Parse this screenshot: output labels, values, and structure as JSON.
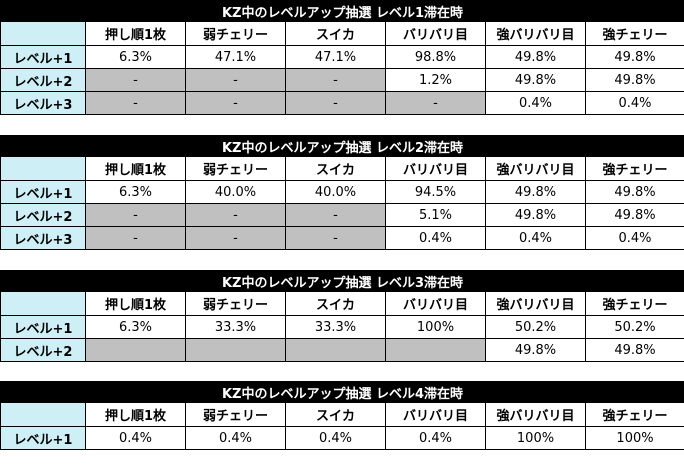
{
  "columns": [
    "押し順1枚",
    "弱チェリー",
    "スイカ",
    "バリバリ目",
    "強バリバリ目",
    "強チェリー"
  ],
  "tables": [
    {
      "title": "KZ中のレベルアップ抽選 レベル1滞在時",
      "rows": [
        {
          "label": "レベル+1",
          "cells": [
            {
              "v": "6.3%",
              "g": false
            },
            {
              "v": "47.1%",
              "g": false
            },
            {
              "v": "47.1%",
              "g": false
            },
            {
              "v": "98.8%",
              "g": false
            },
            {
              "v": "49.8%",
              "g": false
            },
            {
              "v": "49.8%",
              "g": false
            }
          ]
        },
        {
          "label": "レベル+2",
          "cells": [
            {
              "v": "-",
              "g": true
            },
            {
              "v": "-",
              "g": true
            },
            {
              "v": "-",
              "g": true
            },
            {
              "v": "1.2%",
              "g": false
            },
            {
              "v": "49.8%",
              "g": false
            },
            {
              "v": "49.8%",
              "g": false
            }
          ]
        },
        {
          "label": "レベル+3",
          "cells": [
            {
              "v": "-",
              "g": true
            },
            {
              "v": "-",
              "g": true
            },
            {
              "v": "-",
              "g": true
            },
            {
              "v": "-",
              "g": true
            },
            {
              "v": "0.4%",
              "g": false
            },
            {
              "v": "0.4%",
              "g": false
            }
          ]
        }
      ]
    },
    {
      "title": "KZ中のレベルアップ抽選 レベル2滞在時",
      "rows": [
        {
          "label": "レベル+1",
          "cells": [
            {
              "v": "6.3%",
              "g": false
            },
            {
              "v": "40.0%",
              "g": false
            },
            {
              "v": "40.0%",
              "g": false
            },
            {
              "v": "94.5%",
              "g": false
            },
            {
              "v": "49.8%",
              "g": false
            },
            {
              "v": "49.8%",
              "g": false
            }
          ]
        },
        {
          "label": "レベル+2",
          "cells": [
            {
              "v": "-",
              "g": true
            },
            {
              "v": "-",
              "g": true
            },
            {
              "v": "-",
              "g": true
            },
            {
              "v": "5.1%",
              "g": false
            },
            {
              "v": "49.8%",
              "g": false
            },
            {
              "v": "49.8%",
              "g": false
            }
          ]
        },
        {
          "label": "レベル+3",
          "cells": [
            {
              "v": "-",
              "g": true
            },
            {
              "v": "-",
              "g": true
            },
            {
              "v": "-",
              "g": true
            },
            {
              "v": "0.4%",
              "g": false
            },
            {
              "v": "0.4%",
              "g": false
            },
            {
              "v": "0.4%",
              "g": false
            }
          ]
        }
      ]
    },
    {
      "title": "KZ中のレベルアップ抽選 レベル3滞在時",
      "rows": [
        {
          "label": "レベル+1",
          "cells": [
            {
              "v": "6.3%",
              "g": false
            },
            {
              "v": "33.3%",
              "g": false
            },
            {
              "v": "33.3%",
              "g": false
            },
            {
              "v": "100%",
              "g": false
            },
            {
              "v": "50.2%",
              "g": false
            },
            {
              "v": "50.2%",
              "g": false
            }
          ]
        },
        {
          "label": "レベル+2",
          "cells": [
            {
              "v": "",
              "g": true
            },
            {
              "v": "",
              "g": true
            },
            {
              "v": "",
              "g": true
            },
            {
              "v": "",
              "g": true
            },
            {
              "v": "49.8%",
              "g": false
            },
            {
              "v": "49.8%",
              "g": false
            }
          ]
        }
      ]
    },
    {
      "title": "KZ中のレベルアップ抽選 レベル4滞在時",
      "rows": [
        {
          "label": "レベル+1",
          "cells": [
            {
              "v": "0.4%",
              "g": false
            },
            {
              "v": "0.4%",
              "g": false
            },
            {
              "v": "0.4%",
              "g": false
            },
            {
              "v": "0.4%",
              "g": false
            },
            {
              "v": "100%",
              "g": false
            },
            {
              "v": "100%",
              "g": false
            }
          ]
        }
      ]
    }
  ]
}
